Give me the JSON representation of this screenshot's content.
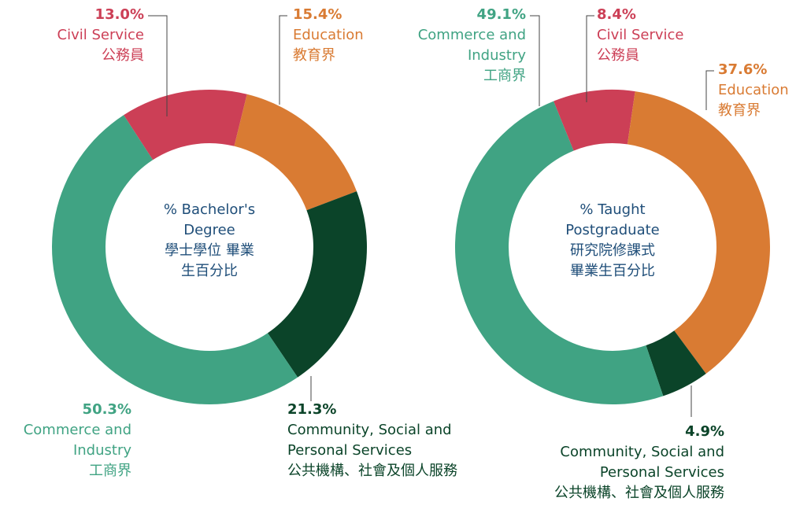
{
  "chart_data": [
    {
      "type": "donut",
      "center_label": "% Bachelor's Degree",
      "center_label_zh": "學士學位 畢業生百分比",
      "categories": [
        "Civil Service",
        "Education",
        "Community, Social and Personal Services",
        "Commerce and Industry"
      ],
      "categories_zh": [
        "公務員",
        "教育界",
        "公共機構、社會及個人服務",
        "工商界"
      ],
      "values": [
        13.0,
        15.4,
        21.3,
        50.3
      ],
      "value_labels": [
        "13.0%",
        "15.4%",
        "21.3%",
        "50.3%"
      ],
      "colors": [
        "#cc3f56",
        "#d97b33",
        "#0b4429",
        "#40a383"
      ]
    },
    {
      "type": "donut",
      "center_label": "% Taught Postgraduate",
      "center_label_zh": "研究院修課式 畢業生百分比",
      "categories": [
        "Civil Service",
        "Education",
        "Community, Social and Personal Services",
        "Commerce and Industry"
      ],
      "categories_zh": [
        "公務員",
        "教育界",
        "公共機構、社會及個人服務",
        "工商界"
      ],
      "values": [
        8.4,
        37.6,
        4.9,
        49.1
      ],
      "value_labels": [
        "8.4%",
        "37.6%",
        "4.9%",
        "49.1%"
      ],
      "colors": [
        "#cc3f56",
        "#d97b33",
        "#0b4429",
        "#40a383"
      ]
    }
  ]
}
